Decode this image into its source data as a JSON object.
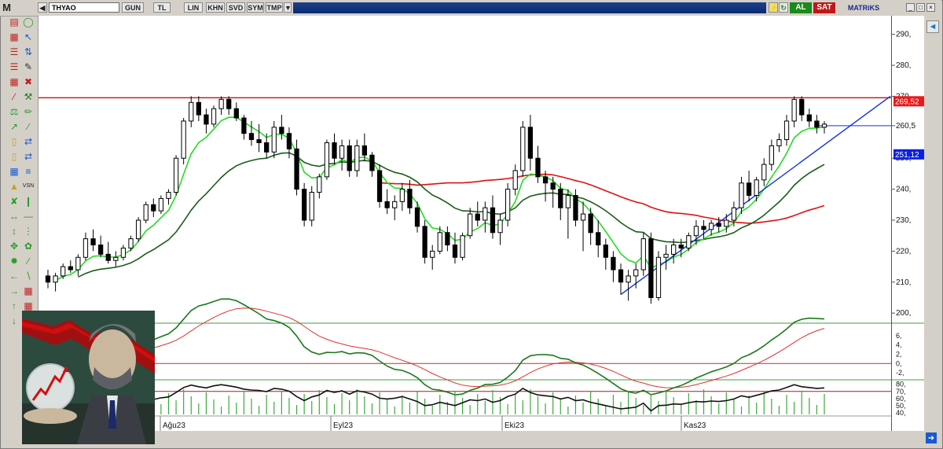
{
  "toolbar": {
    "logo": "M",
    "symbol": "THYAO",
    "period": "GUN",
    "currency": "TL",
    "scale": "LIN",
    "khn": "KHN",
    "svd": "SVD",
    "sym": "SYM",
    "tmp": "TMP",
    "buy_label": "AL",
    "sell_label": "SAT",
    "brand": "MATRiKS"
  },
  "price_axis": {
    "ticks": [
      "290,",
      "280,",
      "270,",
      "260,5",
      "250,",
      "240,",
      "230,",
      "220,",
      "210,",
      "200,"
    ],
    "badge_high": "269,52",
    "badge_low": "251,12",
    "badge_high_color": "#e8191b",
    "badge_low_color": "#0b1fe0"
  },
  "osc_axis": {
    "ticks": [
      "6,",
      "4,",
      "2,",
      "0,",
      "-2,"
    ]
  },
  "rsi_axis": {
    "ticks": [
      "80,",
      "70,",
      "60,",
      "50,",
      "40,"
    ]
  },
  "x_axis": {
    "labels": [
      "Ağu23",
      "Eyl23",
      "Eki23",
      "Kas23"
    ]
  },
  "colors": {
    "ema_fast": "#22dd22",
    "ema_slow": "#1a5c1a",
    "ema_long": "#e01010",
    "trend": "#1030e0",
    "resistance": "#d01010"
  },
  "chart_data": {
    "type": "candlestick",
    "symbol": "THYAO",
    "ylim": [
      197,
      296
    ],
    "resistance": 269.52,
    "current": 260.5,
    "candles": [
      [
        212,
        214,
        208,
        210
      ],
      [
        210,
        213,
        207,
        212
      ],
      [
        212,
        216,
        211,
        215
      ],
      [
        215,
        217,
        213,
        214
      ],
      [
        214,
        219,
        212,
        218
      ],
      [
        218,
        226,
        217,
        224
      ],
      [
        224,
        227,
        220,
        222
      ],
      [
        222,
        225,
        218,
        219
      ],
      [
        219,
        223,
        216,
        217
      ],
      [
        217,
        220,
        215,
        218
      ],
      [
        218,
        222,
        217,
        221
      ],
      [
        221,
        225,
        220,
        224
      ],
      [
        224,
        231,
        223,
        230
      ],
      [
        230,
        236,
        229,
        235
      ],
      [
        235,
        237,
        231,
        233
      ],
      [
        233,
        238,
        232,
        237
      ],
      [
        237,
        240,
        235,
        239
      ],
      [
        239,
        251,
        238,
        250
      ],
      [
        250,
        263,
        248,
        262
      ],
      [
        262,
        270,
        260,
        268
      ],
      [
        268,
        270,
        262,
        264
      ],
      [
        264,
        266,
        258,
        261
      ],
      [
        261,
        267,
        260,
        266
      ],
      [
        266,
        270,
        264,
        269
      ],
      [
        269,
        270,
        264,
        266
      ],
      [
        266,
        268,
        262,
        263
      ],
      [
        263,
        264,
        256,
        258
      ],
      [
        258,
        262,
        254,
        256
      ],
      [
        256,
        261,
        252,
        255
      ],
      [
        255,
        258,
        250,
        252
      ],
      [
        252,
        262,
        250,
        260
      ],
      [
        260,
        264,
        256,
        258
      ],
      [
        258,
        260,
        250,
        253
      ],
      [
        253,
        256,
        238,
        240
      ],
      [
        240,
        242,
        228,
        230
      ],
      [
        230,
        241,
        228,
        239
      ],
      [
        239,
        245,
        237,
        244
      ],
      [
        244,
        256,
        243,
        255
      ],
      [
        255,
        258,
        248,
        250
      ],
      [
        250,
        256,
        246,
        254
      ],
      [
        254,
        256,
        244,
        246
      ],
      [
        246,
        256,
        244,
        254
      ],
      [
        254,
        258,
        249,
        251
      ],
      [
        251,
        252,
        244,
        246
      ],
      [
        246,
        248,
        234,
        236
      ],
      [
        236,
        240,
        232,
        234
      ],
      [
        234,
        238,
        230,
        236
      ],
      [
        236,
        242,
        233,
        240
      ],
      [
        240,
        243,
        232,
        234
      ],
      [
        234,
        236,
        226,
        228
      ],
      [
        228,
        230,
        216,
        218
      ],
      [
        218,
        222,
        214,
        220
      ],
      [
        220,
        228,
        219,
        226
      ],
      [
        226,
        228,
        220,
        222
      ],
      [
        222,
        226,
        216,
        218
      ],
      [
        218,
        226,
        217,
        225
      ],
      [
        225,
        234,
        224,
        232
      ],
      [
        232,
        236,
        228,
        230
      ],
      [
        230,
        236,
        226,
        234
      ],
      [
        234,
        238,
        224,
        226
      ],
      [
        226,
        232,
        222,
        230
      ],
      [
        230,
        242,
        228,
        240
      ],
      [
        240,
        248,
        238,
        246
      ],
      [
        246,
        262,
        244,
        260
      ],
      [
        260,
        264,
        246,
        250
      ],
      [
        250,
        254,
        242,
        244
      ],
      [
        244,
        246,
        236,
        242
      ],
      [
        242,
        244,
        234,
        240
      ],
      [
        240,
        242,
        230,
        234
      ],
      [
        234,
        240,
        224,
        238
      ],
      [
        238,
        240,
        228,
        230
      ],
      [
        230,
        236,
        220,
        232
      ],
      [
        232,
        234,
        222,
        226
      ],
      [
        226,
        230,
        218,
        222
      ],
      [
        222,
        224,
        214,
        218
      ],
      [
        218,
        220,
        210,
        214
      ],
      [
        214,
        216,
        206,
        210
      ],
      [
        210,
        214,
        204,
        212
      ],
      [
        212,
        216,
        208,
        214
      ],
      [
        214,
        226,
        212,
        224
      ],
      [
        224,
        226,
        203,
        205
      ],
      [
        205,
        220,
        204,
        218
      ],
      [
        218,
        222,
        214,
        219
      ],
      [
        219,
        224,
        216,
        222
      ],
      [
        222,
        224,
        218,
        221
      ],
      [
        221,
        226,
        220,
        225
      ],
      [
        225,
        230,
        222,
        228
      ],
      [
        228,
        230,
        224,
        227
      ],
      [
        227,
        230,
        225,
        229
      ],
      [
        229,
        231,
        226,
        228
      ],
      [
        228,
        232,
        226,
        230
      ],
      [
        230,
        236,
        228,
        234
      ],
      [
        234,
        244,
        232,
        242
      ],
      [
        242,
        246,
        236,
        238
      ],
      [
        238,
        244,
        236,
        243
      ],
      [
        243,
        250,
        241,
        248
      ],
      [
        248,
        256,
        246,
        254
      ],
      [
        254,
        258,
        252,
        256
      ],
      [
        256,
        264,
        254,
        262
      ],
      [
        262,
        270,
        260,
        269
      ],
      [
        269,
        270,
        262,
        264
      ],
      [
        264,
        266,
        260,
        262
      ],
      [
        262,
        264,
        258,
        260
      ],
      [
        260,
        262,
        258,
        261
      ]
    ]
  }
}
